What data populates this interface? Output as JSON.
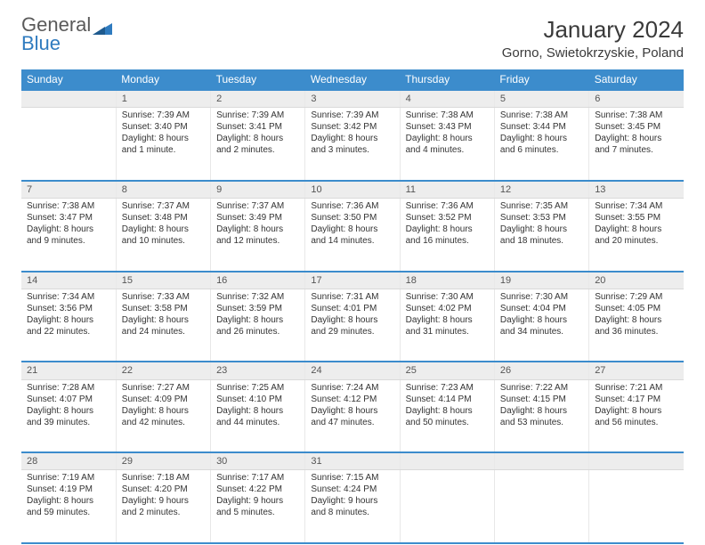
{
  "logo": {
    "line1": "General",
    "line2": "Blue"
  },
  "title": "January 2024",
  "location": "Gorno, Swietokrzyskie, Poland",
  "colors": {
    "header_bg": "#3c8ccc",
    "header_fg": "#ffffff",
    "daynum_bg": "#ededed",
    "row_border": "#3c8ccc",
    "logo_gray": "#5a5a5a",
    "logo_blue": "#2f7bbf",
    "text": "#333333"
  },
  "day_headers": [
    "Sunday",
    "Monday",
    "Tuesday",
    "Wednesday",
    "Thursday",
    "Friday",
    "Saturday"
  ],
  "weeks": [
    {
      "nums": [
        "",
        "1",
        "2",
        "3",
        "4",
        "5",
        "6"
      ],
      "cells": [
        null,
        {
          "sunrise": "Sunrise: 7:39 AM",
          "sunset": "Sunset: 3:40 PM",
          "day1": "Daylight: 8 hours",
          "day2": "and 1 minute."
        },
        {
          "sunrise": "Sunrise: 7:39 AM",
          "sunset": "Sunset: 3:41 PM",
          "day1": "Daylight: 8 hours",
          "day2": "and 2 minutes."
        },
        {
          "sunrise": "Sunrise: 7:39 AM",
          "sunset": "Sunset: 3:42 PM",
          "day1": "Daylight: 8 hours",
          "day2": "and 3 minutes."
        },
        {
          "sunrise": "Sunrise: 7:38 AM",
          "sunset": "Sunset: 3:43 PM",
          "day1": "Daylight: 8 hours",
          "day2": "and 4 minutes."
        },
        {
          "sunrise": "Sunrise: 7:38 AM",
          "sunset": "Sunset: 3:44 PM",
          "day1": "Daylight: 8 hours",
          "day2": "and 6 minutes."
        },
        {
          "sunrise": "Sunrise: 7:38 AM",
          "sunset": "Sunset: 3:45 PM",
          "day1": "Daylight: 8 hours",
          "day2": "and 7 minutes."
        }
      ]
    },
    {
      "nums": [
        "7",
        "8",
        "9",
        "10",
        "11",
        "12",
        "13"
      ],
      "cells": [
        {
          "sunrise": "Sunrise: 7:38 AM",
          "sunset": "Sunset: 3:47 PM",
          "day1": "Daylight: 8 hours",
          "day2": "and 9 minutes."
        },
        {
          "sunrise": "Sunrise: 7:37 AM",
          "sunset": "Sunset: 3:48 PM",
          "day1": "Daylight: 8 hours",
          "day2": "and 10 minutes."
        },
        {
          "sunrise": "Sunrise: 7:37 AM",
          "sunset": "Sunset: 3:49 PM",
          "day1": "Daylight: 8 hours",
          "day2": "and 12 minutes."
        },
        {
          "sunrise": "Sunrise: 7:36 AM",
          "sunset": "Sunset: 3:50 PM",
          "day1": "Daylight: 8 hours",
          "day2": "and 14 minutes."
        },
        {
          "sunrise": "Sunrise: 7:36 AM",
          "sunset": "Sunset: 3:52 PM",
          "day1": "Daylight: 8 hours",
          "day2": "and 16 minutes."
        },
        {
          "sunrise": "Sunrise: 7:35 AM",
          "sunset": "Sunset: 3:53 PM",
          "day1": "Daylight: 8 hours",
          "day2": "and 18 minutes."
        },
        {
          "sunrise": "Sunrise: 7:34 AM",
          "sunset": "Sunset: 3:55 PM",
          "day1": "Daylight: 8 hours",
          "day2": "and 20 minutes."
        }
      ]
    },
    {
      "nums": [
        "14",
        "15",
        "16",
        "17",
        "18",
        "19",
        "20"
      ],
      "cells": [
        {
          "sunrise": "Sunrise: 7:34 AM",
          "sunset": "Sunset: 3:56 PM",
          "day1": "Daylight: 8 hours",
          "day2": "and 22 minutes."
        },
        {
          "sunrise": "Sunrise: 7:33 AM",
          "sunset": "Sunset: 3:58 PM",
          "day1": "Daylight: 8 hours",
          "day2": "and 24 minutes."
        },
        {
          "sunrise": "Sunrise: 7:32 AM",
          "sunset": "Sunset: 3:59 PM",
          "day1": "Daylight: 8 hours",
          "day2": "and 26 minutes."
        },
        {
          "sunrise": "Sunrise: 7:31 AM",
          "sunset": "Sunset: 4:01 PM",
          "day1": "Daylight: 8 hours",
          "day2": "and 29 minutes."
        },
        {
          "sunrise": "Sunrise: 7:30 AM",
          "sunset": "Sunset: 4:02 PM",
          "day1": "Daylight: 8 hours",
          "day2": "and 31 minutes."
        },
        {
          "sunrise": "Sunrise: 7:30 AM",
          "sunset": "Sunset: 4:04 PM",
          "day1": "Daylight: 8 hours",
          "day2": "and 34 minutes."
        },
        {
          "sunrise": "Sunrise: 7:29 AM",
          "sunset": "Sunset: 4:05 PM",
          "day1": "Daylight: 8 hours",
          "day2": "and 36 minutes."
        }
      ]
    },
    {
      "nums": [
        "21",
        "22",
        "23",
        "24",
        "25",
        "26",
        "27"
      ],
      "cells": [
        {
          "sunrise": "Sunrise: 7:28 AM",
          "sunset": "Sunset: 4:07 PM",
          "day1": "Daylight: 8 hours",
          "day2": "and 39 minutes."
        },
        {
          "sunrise": "Sunrise: 7:27 AM",
          "sunset": "Sunset: 4:09 PM",
          "day1": "Daylight: 8 hours",
          "day2": "and 42 minutes."
        },
        {
          "sunrise": "Sunrise: 7:25 AM",
          "sunset": "Sunset: 4:10 PM",
          "day1": "Daylight: 8 hours",
          "day2": "and 44 minutes."
        },
        {
          "sunrise": "Sunrise: 7:24 AM",
          "sunset": "Sunset: 4:12 PM",
          "day1": "Daylight: 8 hours",
          "day2": "and 47 minutes."
        },
        {
          "sunrise": "Sunrise: 7:23 AM",
          "sunset": "Sunset: 4:14 PM",
          "day1": "Daylight: 8 hours",
          "day2": "and 50 minutes."
        },
        {
          "sunrise": "Sunrise: 7:22 AM",
          "sunset": "Sunset: 4:15 PM",
          "day1": "Daylight: 8 hours",
          "day2": "and 53 minutes."
        },
        {
          "sunrise": "Sunrise: 7:21 AM",
          "sunset": "Sunset: 4:17 PM",
          "day1": "Daylight: 8 hours",
          "day2": "and 56 minutes."
        }
      ]
    },
    {
      "nums": [
        "28",
        "29",
        "30",
        "31",
        "",
        "",
        ""
      ],
      "cells": [
        {
          "sunrise": "Sunrise: 7:19 AM",
          "sunset": "Sunset: 4:19 PM",
          "day1": "Daylight: 8 hours",
          "day2": "and 59 minutes."
        },
        {
          "sunrise": "Sunrise: 7:18 AM",
          "sunset": "Sunset: 4:20 PM",
          "day1": "Daylight: 9 hours",
          "day2": "and 2 minutes."
        },
        {
          "sunrise": "Sunrise: 7:17 AM",
          "sunset": "Sunset: 4:22 PM",
          "day1": "Daylight: 9 hours",
          "day2": "and 5 minutes."
        },
        {
          "sunrise": "Sunrise: 7:15 AM",
          "sunset": "Sunset: 4:24 PM",
          "day1": "Daylight: 9 hours",
          "day2": "and 8 minutes."
        },
        null,
        null,
        null
      ]
    }
  ]
}
